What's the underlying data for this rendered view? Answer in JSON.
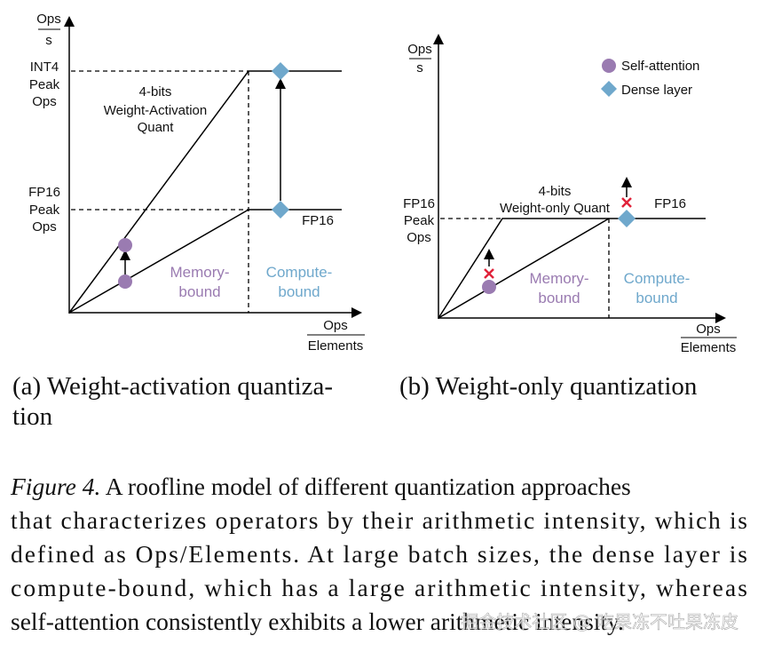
{
  "panel_a": {
    "y_label_top": "Ops",
    "y_label_bottom": "s",
    "int4_label": [
      "INT4",
      "Peak",
      "Ops"
    ],
    "fp16_label": [
      "FP16",
      "Peak",
      "Ops"
    ],
    "quant_label": [
      "4-bits",
      "Weight-Activation",
      "Quant"
    ],
    "fp16_line_label": "FP16",
    "memory_bound": [
      "Memory-",
      "bound"
    ],
    "compute_bound": [
      "Compute-",
      "bound"
    ],
    "x_label_top": "Ops",
    "x_label_bottom": "Elements",
    "caption": [
      "(a)  Weight-activation  quantiza-",
      "tion"
    ]
  },
  "panel_b": {
    "y_label_top": "Ops",
    "y_label_bottom": "s",
    "legend": [
      "Self-attention",
      "Dense layer"
    ],
    "fp16_label": [
      "FP16",
      "Peak",
      "Ops"
    ],
    "quant_label": [
      "4-bits",
      "Weight-only Quant"
    ],
    "fp16_line_label": "FP16",
    "memory_bound": [
      "Memory-",
      "bound"
    ],
    "compute_bound": [
      "Compute-",
      "bound"
    ],
    "x_label_top": "Ops",
    "x_label_bottom": "Elements",
    "caption": "(b)  Weight-only quantization"
  },
  "figure_caption": {
    "label": "Figure 4.",
    "lines": [
      "A roofline model of different quantization approaches",
      "that characterizes operators by their arithmetic intensity, which is",
      "defined as Ops/Elements. At large batch sizes, the dense layer is",
      "compute-bound, which has a large arithmetic intensity, whereas",
      "self-attention consistently exhibits a lower arithmetic intensity."
    ]
  },
  "watermark": "掘金技术社区 @ 吃果冻不吐果冻皮"
}
